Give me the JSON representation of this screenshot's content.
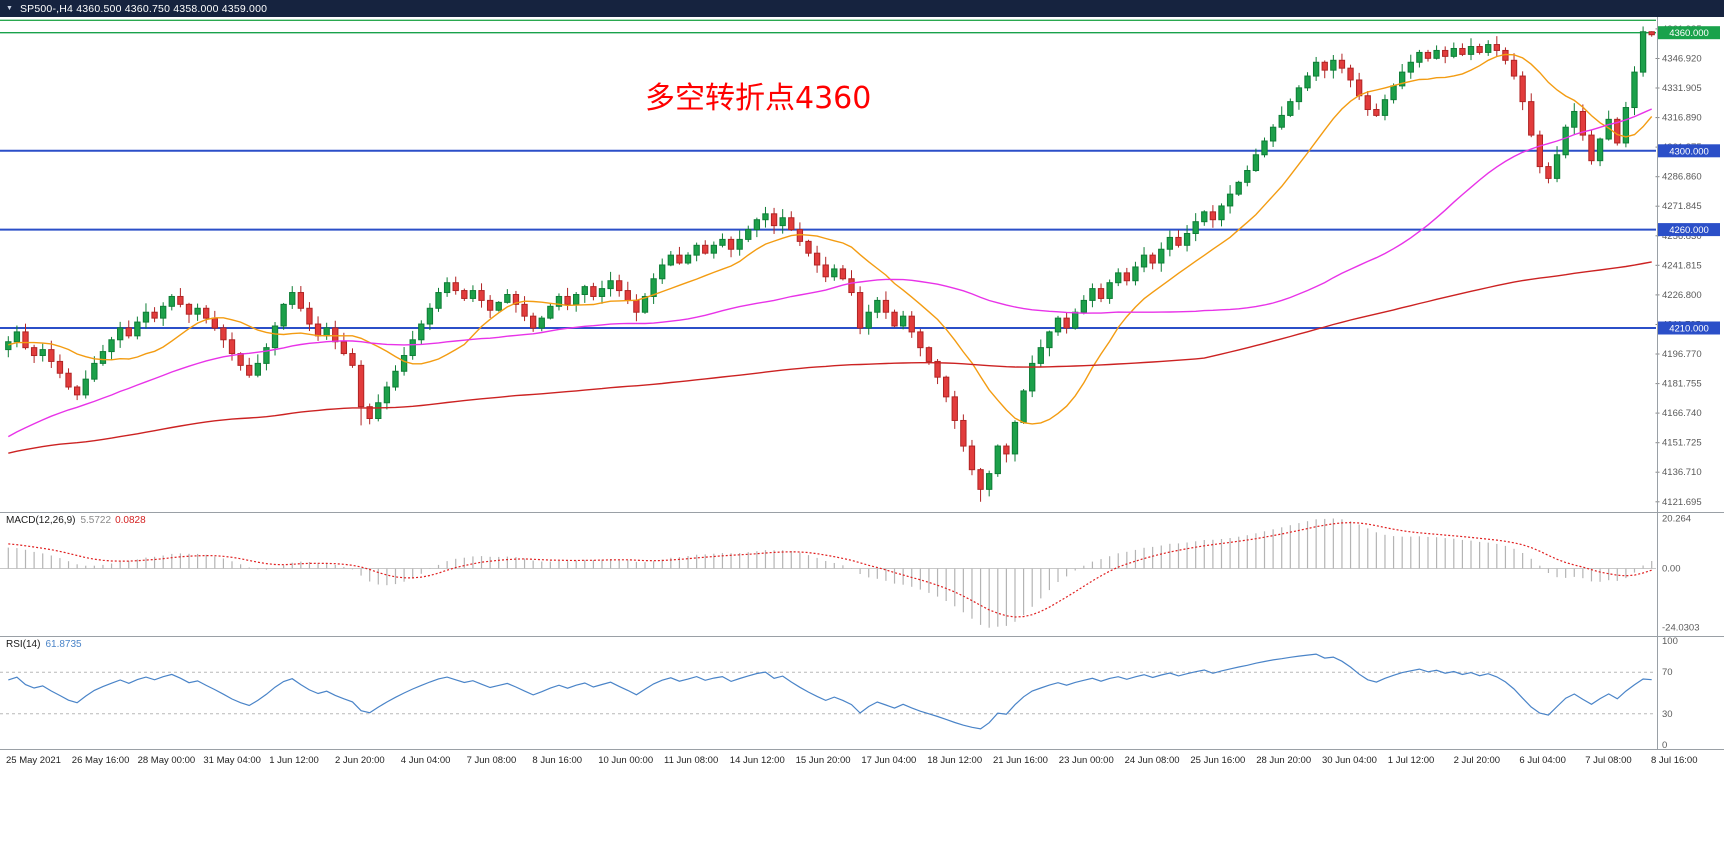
{
  "titlebar": {
    "dropdown_icon": "▼",
    "symbol_info": "SP500-,H4 4360.500 4360.750 4358.000 4359.000",
    "bg_color": "#16233f"
  },
  "chart_data": {
    "type": "candlestick",
    "symbol": "SP500-",
    "timeframe": "H4",
    "quote": {
      "open": "4360.500",
      "high": "4360.750",
      "low": "4358.000",
      "close": "4359.000"
    },
    "annotation": {
      "text": "多空转折点4360",
      "color": "#ff0000"
    },
    "price_axis": {
      "min": 4117,
      "max": 4368,
      "ticks": [
        4361.935,
        4346.92,
        4331.905,
        4316.89,
        4301.875,
        4286.86,
        4271.845,
        4256.83,
        4241.815,
        4226.8,
        4211.785,
        4196.77,
        4181.755,
        4166.74,
        4151.725,
        4136.71,
        4121.695
      ]
    },
    "levels": [
      {
        "price": 4366.3,
        "label": "",
        "badge": false,
        "color": "#2aa84f",
        "width": 1.4
      },
      {
        "price": 4360.0,
        "label": "4360.000",
        "badge": true,
        "color": "#19a24b",
        "width": 1.4
      },
      {
        "price": 4300.0,
        "label": "4300.000",
        "badge": true,
        "color": "#2b4fc8",
        "width": 2
      },
      {
        "price": 4260.0,
        "label": "4260.000",
        "badge": true,
        "color": "#2b4fc8",
        "width": 2
      },
      {
        "price": 4210.0,
        "label": "4210.000",
        "badge": true,
        "color": "#2b4fc8",
        "width": 2
      }
    ],
    "x_labels": [
      "25 May 2021",
      "26 May 16:00",
      "28 May 00:00",
      "31 May 04:00",
      "1 Jun 12:00",
      "2 Jun 20:00",
      "4 Jun 04:00",
      "7 Jun 08:00",
      "8 Jun 16:00",
      "10 Jun 00:00",
      "11 Jun 08:00",
      "14 Jun 12:00",
      "15 Jun 20:00",
      "17 Jun 04:00",
      "18 Jun 12:00",
      "21 Jun 16:00",
      "23 Jun 00:00",
      "24 Jun 08:00",
      "25 Jun 16:00",
      "28 Jun 20:00",
      "30 Jun 04:00",
      "1 Jul 12:00",
      "2 Jul 20:00",
      "6 Jul 04:00",
      "7 Jul 08:00",
      "8 Jul 16:00"
    ],
    "first_open": 4199,
    "pre_closes": [
      4060,
      4068,
      4064,
      4074,
      4070,
      4080,
      4076,
      4086,
      4082,
      4092,
      4088,
      4098,
      4094,
      4104,
      4100,
      4110,
      4106,
      4116,
      4112,
      4122,
      4118,
      4128,
      4124,
      4134,
      4130,
      4140,
      4136,
      4146,
      4142,
      4152,
      4148,
      4158,
      4154,
      4164,
      4160,
      4170,
      4166,
      4176,
      4172,
      4182,
      4178,
      4188,
      4184,
      4190,
      4186,
      4194,
      4190,
      4198,
      4194,
      4200,
      4196,
      4202,
      4198,
      4204,
      4200,
      4206,
      4202,
      4206,
      4203,
      4205
    ],
    "closes": [
      4203,
      4208,
      4200,
      4196,
      4199,
      4193,
      4187,
      4180,
      4176,
      4184,
      4192,
      4198,
      4204,
      4210,
      4206,
      4213,
      4218,
      4215,
      4221,
      4226,
      4222,
      4217,
      4220,
      4215,
      4210,
      4204,
      4197,
      4191,
      4186,
      4192,
      4200,
      4211,
      4222,
      4228,
      4220,
      4212,
      4206,
      4210,
      4203,
      4197,
      4191,
      4170,
      4164,
      4172,
      4180,
      4188,
      4196,
      4204,
      4212,
      4220,
      4228,
      4233,
      4229,
      4225,
      4229,
      4224,
      4219,
      4223,
      4227,
      4222,
      4216,
      4210,
      4215,
      4221,
      4226,
      4222,
      4227,
      4231,
      4226,
      4230,
      4234,
      4229,
      4224,
      4218,
      4226,
      4235,
      4242,
      4247,
      4243,
      4247,
      4252,
      4248,
      4252,
      4255,
      4250,
      4255,
      4260,
      4265,
      4268,
      4262,
      4266,
      4260,
      4254,
      4248,
      4242,
      4236,
      4240,
      4235,
      4228,
      4210,
      4218,
      4224,
      4218,
      4211,
      4216,
      4208,
      4200,
      4193,
      4185,
      4175,
      4163,
      4150,
      4138,
      4128,
      4136,
      4150,
      4146,
      4162,
      4178,
      4192,
      4200,
      4208,
      4215,
      4210,
      4218,
      4224,
      4230,
      4225,
      4233,
      4238,
      4234,
      4241,
      4247,
      4243,
      4250,
      4256,
      4252,
      4258,
      4264,
      4269,
      4265,
      4272,
      4278,
      4284,
      4290,
      4298,
      4305,
      4312,
      4318,
      4325,
      4332,
      4338,
      4345,
      4341,
      4346,
      4342,
      4336,
      4328,
      4321,
      4318,
      4326,
      4333,
      4340,
      4345,
      4350,
      4347,
      4351,
      4348,
      4352,
      4349,
      4353,
      4350,
      4354,
      4351,
      4346,
      4338,
      4325,
      4308,
      4292,
      4286,
      4298,
      4312,
      4320,
      4308,
      4295,
      4306,
      4316,
      4304,
      4322,
      4340,
      4360.5,
      4359
    ],
    "wick_overrides": {
      "41": {
        "low": 4160.5
      },
      "88": {
        "high": 4271.5
      },
      "113": {
        "low": 4121.695
      },
      "179": {
        "low": 4283.5
      },
      "190": {
        "high": 4363.2
      },
      "191": {
        "high": 4360.75,
        "low": 4358.0
      }
    },
    "candle_colors": {
      "up_fill": "#1ca04a",
      "up_stroke": "#0e7d36",
      "down_fill": "#e23c3c",
      "down_stroke": "#b02424"
    },
    "moving_averages": [
      {
        "name": "ma-fast-orange",
        "period": 13,
        "color": "#f39c12"
      },
      {
        "name": "ma-mid-magenta",
        "period": 55,
        "color": "#e833e8"
      },
      {
        "name": "ma-slow-red",
        "period": 200,
        "color": "#cc2222"
      }
    ],
    "macd": {
      "label": "MACD(12,26,9)",
      "value_main": "5.5722",
      "value_signal": "0.0828",
      "ticks": [
        {
          "v": 20.264,
          "label": "20.264"
        },
        {
          "v": 0,
          "label": "0.00"
        },
        {
          "v": -24.0303,
          "label": "-24.0303"
        }
      ],
      "range": [
        -27,
        22.5
      ],
      "hist_color": "#b4b4b4",
      "signal_color": "#e02020"
    },
    "rsi": {
      "label": "RSI(14)",
      "value": "61.8735",
      "period": 14,
      "ticks": [
        {
          "v": 100,
          "label": "100"
        },
        {
          "v": 70,
          "label": "70"
        },
        {
          "v": 30,
          "label": "30"
        },
        {
          "v": 0,
          "label": "0"
        }
      ],
      "level_lines": [
        70,
        30
      ],
      "color": "#4a84c8"
    }
  }
}
